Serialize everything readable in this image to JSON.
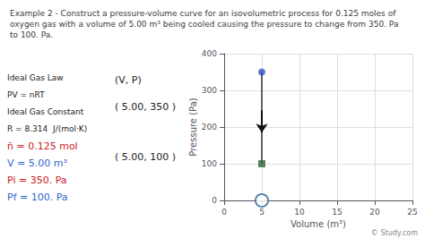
{
  "chart_data": {
    "type": "line",
    "title": "Example 2 - Construct a pressure-volume curve for an isovolumetric process for 0.125 moles of\noxygen gas with a volume of 5.00 m³ being cooled causing the pressure to change from 350. Pa\nto 100. Pa.",
    "xlabel": "Volume (m³)",
    "ylabel": "Pressure (Pa)",
    "xlim": [
      0,
      25
    ],
    "ylim": [
      0,
      400
    ],
    "xticks": [
      0,
      5,
      10,
      15,
      20,
      25
    ],
    "yticks": [
      0,
      100,
      200,
      300,
      400
    ],
    "grid": true,
    "series": [
      {
        "type": "line",
        "color": "#333333",
        "x": [
          5.0,
          5.0
        ],
        "values": [
          350,
          100
        ]
      },
      {
        "type": "arrow",
        "color": "#111111",
        "x": [
          5.0,
          5.0
        ],
        "values": [
          245,
          185
        ]
      },
      {
        "type": "scatter",
        "marker": "circle",
        "color": "#3355bb",
        "x": [
          5.0
        ],
        "values": [
          350
        ]
      },
      {
        "type": "scatter",
        "marker": "square",
        "color": "#336633",
        "x": [
          5.0
        ],
        "values": [
          100
        ]
      },
      {
        "type": "scatter",
        "marker": "open_circle",
        "color": "#336699",
        "x": [
          5.0
        ],
        "values": [
          0
        ]
      }
    ],
    "annotations": [
      {
        "text": "Ideal Gas Law"
      },
      {
        "text": "PV = nRT"
      },
      {
        "text": "Ideal Gas Constant"
      },
      {
        "text": "R = 8.314  J/(mol·K)"
      },
      {
        "text": "ñ = 0.125 mol",
        "color": "#cc2222"
      },
      {
        "text": "V = 5.00 m³",
        "color": "#3366cc"
      },
      {
        "text": "Pi = 350. Pa",
        "color": "#cc2222"
      },
      {
        "text": "Pf = 100. Pa",
        "color": "#3366cc"
      },
      {
        "text": "(V, P)"
      },
      {
        "text": "( 5.00, 350 )"
      },
      {
        "text": "( 5.00, 100 )"
      },
      {
        "text": "© Study.com",
        "color": "#888888"
      }
    ]
  }
}
